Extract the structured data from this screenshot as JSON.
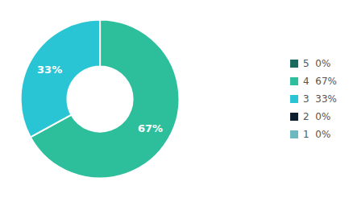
{
  "chart_data": {
    "type": "pie",
    "categories": [
      "5  0%",
      "4  67%",
      "3  33%",
      "2  0%",
      "1  0%"
    ],
    "values": [
      0,
      67,
      33,
      0,
      0
    ],
    "colors": [
      "#1a6b5e",
      "#2dbe9c",
      "#29c5d4",
      "#0d1f2d",
      "#6bb8c0"
    ],
    "value_labels": [
      null,
      "67%",
      "33%",
      null,
      null
    ],
    "data_labels": true,
    "legend": "right"
  }
}
